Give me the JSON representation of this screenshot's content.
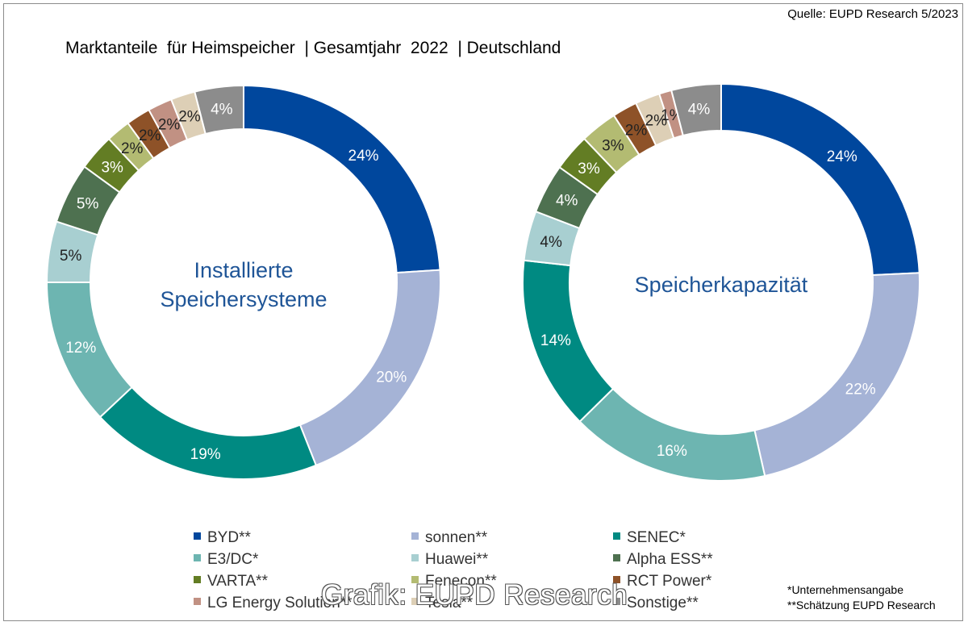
{
  "source": "Quelle:  EUPD Research 5/2023",
  "title": "Marktanteile  für Heimspeicher  | Gesamtjahr  2022  | Deutschland",
  "chart_data": [
    {
      "type": "pie",
      "title": "Installierte Speichersysteme",
      "center_label": [
        "Installierte",
        "Speichersysteme"
      ],
      "categories": [
        "BYD**",
        "sonnen**",
        "SENEC*",
        "E3/DC*",
        "Huawei**",
        "Alpha ESS**",
        "VARTA**",
        "Fenecon**",
        "RCT Power*",
        "LG Energy Solution**",
        "Tesla**",
        "Sonstige**"
      ],
      "values": [
        24,
        20,
        19,
        12,
        5,
        5,
        3,
        2,
        2,
        2,
        2,
        4
      ],
      "labels": [
        "24%",
        "20%",
        "19%",
        "12%",
        "5%",
        "5%",
        "3%",
        "2%",
        "2%",
        "2%",
        "2%",
        "4%"
      ]
    },
    {
      "type": "pie",
      "title": "Speicherkapazität",
      "center_label": [
        "Speicherkapazität"
      ],
      "categories": [
        "BYD**",
        "sonnen**",
        "E3/DC*",
        "SENEC*",
        "Huawei**",
        "Alpha ESS**",
        "VARTA**",
        "Fenecon**",
        "RCT Power*",
        "Tesla**",
        "LG Energy Solution**",
        "Sonstige**"
      ],
      "values": [
        24,
        22,
        16,
        14,
        4,
        4,
        3,
        3,
        2,
        2,
        1,
        4
      ],
      "labels": [
        "24%",
        "22%",
        "16%",
        "14%",
        "4%",
        "4%",
        "3%",
        "3%",
        "2%",
        "2%",
        "1%",
        "4%"
      ]
    }
  ],
  "legend": [
    {
      "label": "BYD**",
      "color": "#00479d"
    },
    {
      "label": "sonnen**",
      "color": "#a5b3d6"
    },
    {
      "label": "SENEC*",
      "color": "#008a82"
    },
    {
      "label": "E3/DC*",
      "color": "#6db5b1"
    },
    {
      "label": "Huawei**",
      "color": "#a8cfd1"
    },
    {
      "label": "Alpha ESS**",
      "color": "#4e7150"
    },
    {
      "label": "VARTA**",
      "color": "#637d24"
    },
    {
      "label": "Fenecon**",
      "color": "#b3bb72"
    },
    {
      "label": "RCT Power*",
      "color": "#8e5228"
    },
    {
      "label": "LG Energy Solution**",
      "color": "#c19183"
    },
    {
      "label": "Tesla**",
      "color": "#ddcfb6"
    },
    {
      "label": "Sonstige**",
      "color": "#8c8c8c"
    }
  ],
  "notes": [
    "*Unternehmensangabe",
    "**Schätzung EUPD Research"
  ],
  "watermark": "Grafik: EUPD Research"
}
